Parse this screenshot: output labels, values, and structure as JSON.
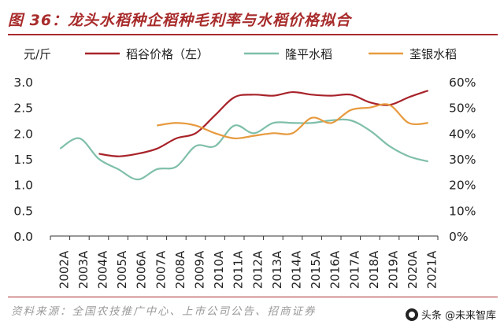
{
  "header": {
    "title": "图 36：龙头水稻种企稻种毛利率与水稻价格拟合"
  },
  "footer": {
    "source": "资料来源：全国农技推广中心、上市公司公告、招商证券",
    "watermark": "头条 @未来智库"
  },
  "colors": {
    "accent": "#a82b2b",
    "rice_price": "#a8232a",
    "longping": "#7fbfaa",
    "quanyin": "#e79a3e"
  },
  "chart_data": {
    "type": "line",
    "title": "图 36：龙头水稻种企稻种毛利率与水稻价格拟合",
    "ylabel_left": "元/斤",
    "categories": [
      "2002A",
      "2003A",
      "2004A",
      "2005A",
      "2006A",
      "2007A",
      "2008A",
      "2009A",
      "2010A",
      "2011A",
      "2012A",
      "2013A",
      "2014A",
      "2015A",
      "2016A",
      "2017A",
      "2018A",
      "2019A",
      "2020A",
      "2021A"
    ],
    "y_left": {
      "min": 0,
      "max": 3.0,
      "ticks": [
        "0.0",
        "0.5",
        "1.0",
        "1.5",
        "2.0",
        "2.5",
        "3.0"
      ]
    },
    "y_right": {
      "min": 0,
      "max": 60,
      "ticks": [
        "0%",
        "10%",
        "20%",
        "30%",
        "40%",
        "50%",
        "60%"
      ]
    },
    "grid": false,
    "legend_position": "top",
    "series": [
      {
        "name": "稻谷价格（左）",
        "axis": "left",
        "color": "#a8232a",
        "values": [
          null,
          null,
          1.6,
          1.55,
          1.6,
          1.7,
          1.9,
          2.0,
          2.35,
          2.7,
          2.75,
          2.73,
          2.8,
          2.75,
          2.73,
          2.75,
          2.6,
          2.55,
          2.7,
          2.83
        ]
      },
      {
        "name": "隆平水稻",
        "axis": "right",
        "color": "#7fbfaa",
        "values": [
          34,
          38,
          30,
          26,
          22,
          26,
          27,
          35,
          35,
          43,
          40,
          44,
          44,
          44,
          45,
          45,
          41,
          35,
          31,
          29
        ]
      },
      {
        "name": "荃银水稻",
        "axis": "right",
        "color": "#e79a3e",
        "values": [
          null,
          null,
          null,
          null,
          null,
          43,
          44,
          43,
          40,
          38,
          39,
          40,
          40,
          46,
          44,
          49,
          50,
          51,
          44,
          44
        ]
      }
    ]
  }
}
